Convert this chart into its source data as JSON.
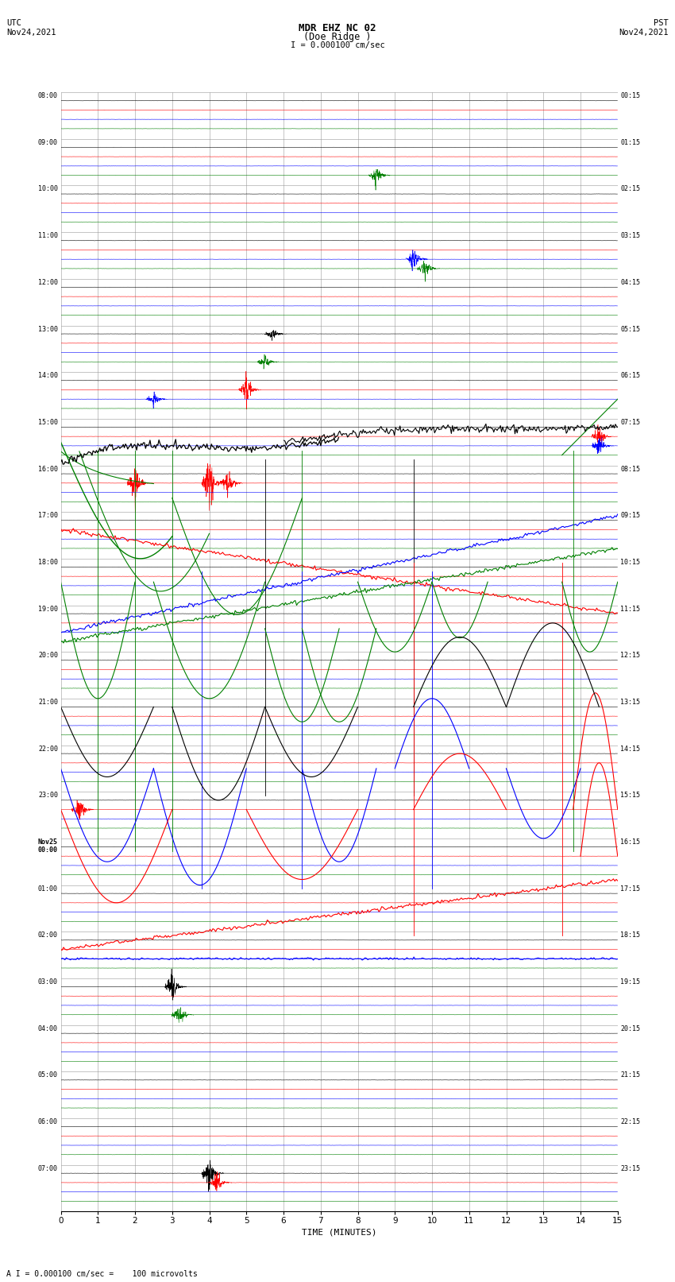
{
  "title_line1": "MDR EHZ NC 02",
  "title_line2": "(Doe Ridge )",
  "scale_label": "I = 0.000100 cm/sec",
  "utc_label": "UTC\nNov24,2021",
  "pst_label": "PST\nNov24,2021",
  "xlabel": "TIME (MINUTES)",
  "footer": "A I = 0.000100 cm/sec =    100 microvolts",
  "xlim": [
    0,
    15
  ],
  "num_rows": 24,
  "colors": [
    "black",
    "red",
    "blue",
    "green"
  ],
  "bg_color": "white",
  "grid_color": "#999999",
  "row_labels_left": [
    "08:00",
    "09:00",
    "10:00",
    "11:00",
    "12:00",
    "13:00",
    "14:00",
    "15:00",
    "16:00",
    "17:00",
    "18:00",
    "19:00",
    "20:00",
    "21:00",
    "22:00",
    "23:00",
    "Nov25\n00:00",
    "01:00",
    "02:00",
    "03:00",
    "04:00",
    "05:00",
    "06:00",
    "07:00"
  ],
  "row_labels_right": [
    "00:15",
    "01:15",
    "02:15",
    "03:15",
    "04:15",
    "05:15",
    "06:15",
    "07:15",
    "08:15",
    "09:15",
    "10:15",
    "11:15",
    "12:15",
    "13:15",
    "14:15",
    "15:15",
    "16:15",
    "17:15",
    "18:15",
    "19:15",
    "20:15",
    "21:15",
    "22:15",
    "23:15"
  ],
  "line_width": 0.4
}
